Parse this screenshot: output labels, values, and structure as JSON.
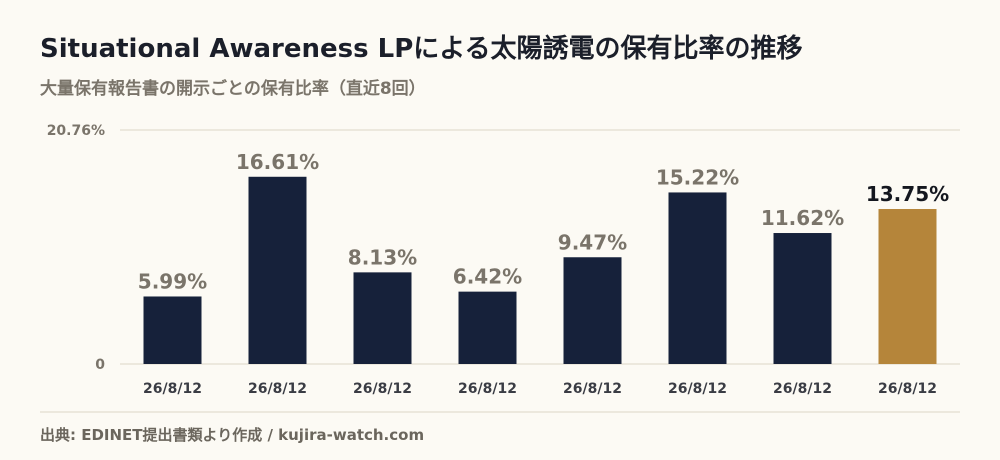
{
  "title": "Situational Awareness LPによる太陽誘電の保有比率の推移",
  "subtitle": "大量保有報告書の開示ごとの保有比率（直近8回）",
  "source": "出典: EDINET提出書類より作成 / kujira-watch.com",
  "colors": {
    "bar": "#16213a",
    "highlight": "#b5853a",
    "label": "#7a746a",
    "highlight_label": "#14171f",
    "grid": "#ddd6c6"
  },
  "chart_data": {
    "type": "bar",
    "categories": [
      "26/8/12",
      "26/8/12",
      "26/8/12",
      "26/8/12",
      "26/8/12",
      "26/8/12",
      "26/8/12",
      "26/8/12"
    ],
    "values": [
      5.99,
      16.61,
      8.13,
      6.42,
      9.47,
      15.22,
      11.62,
      13.75
    ],
    "value_labels": [
      "5.99%",
      "16.61%",
      "8.13%",
      "6.42%",
      "9.47%",
      "15.22%",
      "11.62%",
      "13.75%"
    ],
    "highlight_index": 7,
    "ylim": [
      0,
      20.76
    ],
    "y_tick_labels": [
      "0",
      "20.76%"
    ],
    "grid": true
  }
}
